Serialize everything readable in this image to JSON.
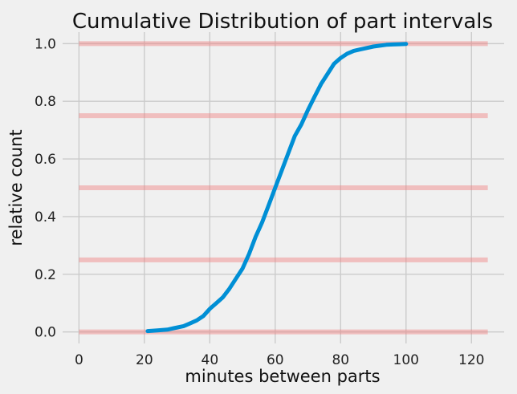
{
  "chart_data": {
    "type": "line",
    "title": "Cumulative Distribution of part intervals",
    "xlabel": "minutes between parts",
    "ylabel": "relative count",
    "xlim": [
      -5,
      130
    ],
    "ylim": [
      -0.04,
      1.04
    ],
    "xticks": [
      0,
      20,
      40,
      60,
      80,
      100,
      120
    ],
    "yticks": [
      0.0,
      0.2,
      0.4,
      0.6,
      0.8,
      1.0
    ],
    "xtick_labels": [
      "0",
      "20",
      "40",
      "60",
      "80",
      "100",
      "120"
    ],
    "ytick_labels": [
      "0.0",
      "0.2",
      "0.4",
      "0.6",
      "0.8",
      "1.0"
    ],
    "grid": true,
    "series": [
      {
        "color": "#008fd5",
        "x": [
          21,
          24,
          27,
          29,
          32,
          34,
          36,
          38,
          40,
          42,
          44,
          46,
          48,
          50,
          52,
          54,
          56,
          58,
          60,
          62,
          64,
          66,
          68,
          70,
          72,
          74,
          76,
          78,
          80,
          82,
          84,
          86,
          88,
          90,
          92,
          94,
          96,
          98,
          100
        ],
        "y": [
          0.003,
          0.005,
          0.008,
          0.013,
          0.02,
          0.03,
          0.04,
          0.055,
          0.08,
          0.1,
          0.12,
          0.15,
          0.185,
          0.22,
          0.27,
          0.33,
          0.38,
          0.44,
          0.5,
          0.56,
          0.62,
          0.68,
          0.72,
          0.77,
          0.815,
          0.86,
          0.895,
          0.93,
          0.95,
          0.965,
          0.975,
          0.98,
          0.985,
          0.99,
          0.993,
          0.996,
          0.997,
          0.998,
          0.999
        ]
      }
    ],
    "reference_lines": {
      "color": "#f08080",
      "y": [
        0.0,
        0.25,
        0.5,
        0.75,
        1.0
      ],
      "x_range": [
        0,
        125
      ]
    }
  }
}
